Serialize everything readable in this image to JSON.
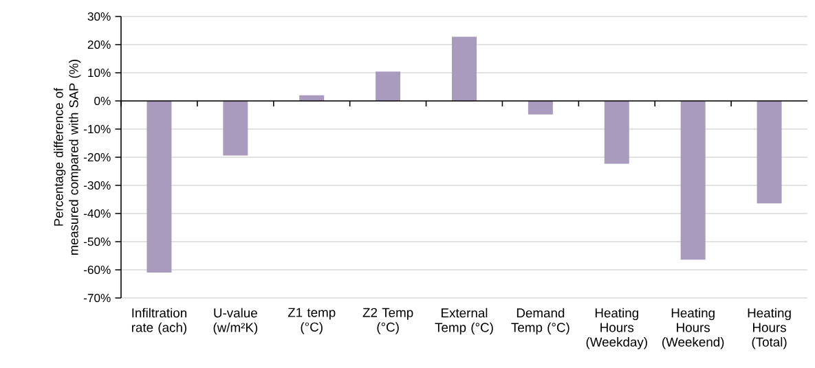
{
  "chart_data": {
    "type": "bar",
    "ylabel": "Percentage difference of measured compared with SAP (%)",
    "categories": [
      "Infiltration rate (ach)",
      "U-value (w/m²K)",
      "Z1 temp (°C)",
      "Z2 Temp (°C)",
      "External Temp (°C)",
      "Demand Temp (°C)",
      "Heating Hours (Weekday)",
      "Heating Hours (Weekend)",
      "Heating Hours (Total)"
    ],
    "values": [
      -61,
      -19.4,
      2,
      10.4,
      22.8,
      -4.8,
      -22.3,
      -56.4,
      -36.4
    ],
    "color": "#a99bbd",
    "ylim": [
      -70,
      30
    ],
    "yticks": [
      {
        "value": 30,
        "label": "30%"
      },
      {
        "value": 20,
        "label": "20%"
      },
      {
        "value": 10,
        "label": "10%"
      },
      {
        "value": 0,
        "label": "0%"
      },
      {
        "value": -10,
        "label": "-10%"
      },
      {
        "value": -20,
        "label": "-20%"
      },
      {
        "value": -30,
        "label": "-30%"
      },
      {
        "value": -40,
        "label": "-40%"
      },
      {
        "value": -50,
        "label": "-50%"
      },
      {
        "value": -60,
        "label": "-60%"
      },
      {
        "value": -70,
        "label": "-70%"
      }
    ],
    "grid": "y"
  }
}
